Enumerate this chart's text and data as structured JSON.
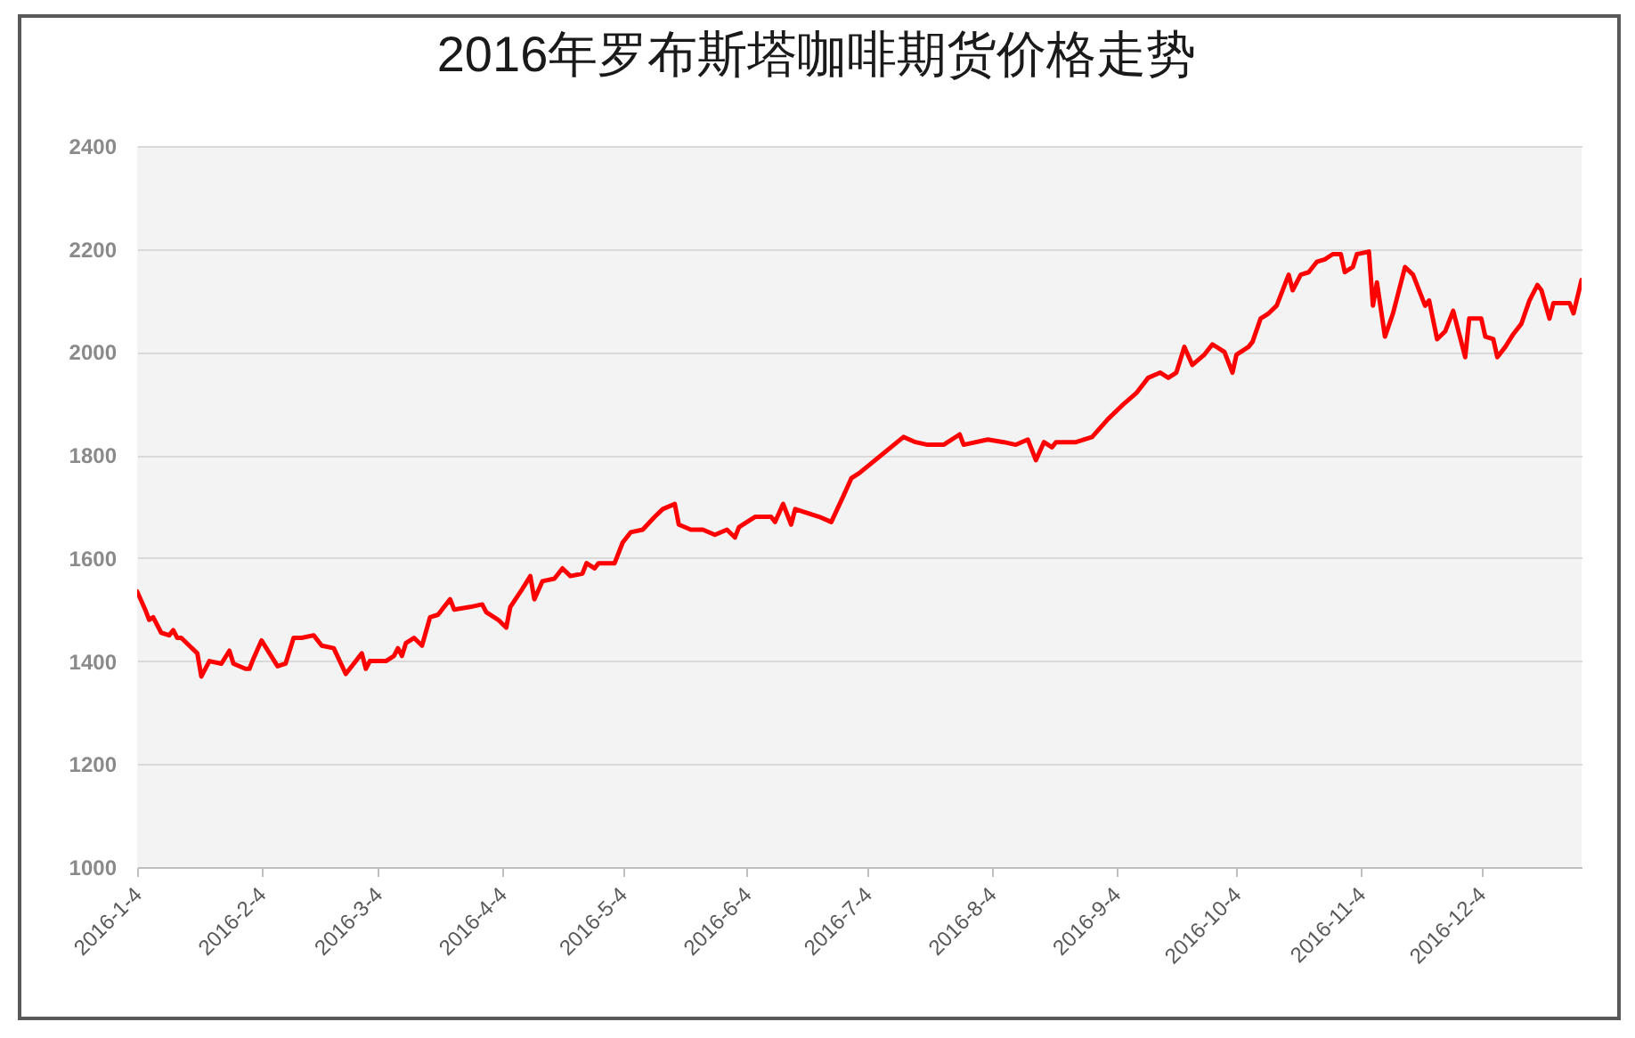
{
  "chart_data": {
    "type": "line",
    "title": "2016年罗布斯塔咖啡期货价格走势",
    "color": "#ff0000",
    "x": [
      "2016-01-04",
      "2016-01-06",
      "2016-01-07",
      "2016-01-08",
      "2016-01-10",
      "2016-01-12",
      "2016-01-13",
      "2016-01-14",
      "2016-01-15",
      "2016-01-17",
      "2016-01-19",
      "2016-01-20",
      "2016-01-22",
      "2016-01-25",
      "2016-01-27",
      "2016-01-28",
      "2016-01-31",
      "2016-02-01",
      "2016-02-02",
      "2016-02-04",
      "2016-02-06",
      "2016-02-08",
      "2016-02-10",
      "2016-02-12",
      "2016-02-14",
      "2016-02-17",
      "2016-02-19",
      "2016-02-22",
      "2016-02-25",
      "2016-02-26",
      "2016-02-29",
      "2016-03-01",
      "2016-03-02",
      "2016-03-06",
      "2016-03-08",
      "2016-03-09",
      "2016-03-10",
      "2016-03-11",
      "2016-03-13",
      "2016-03-15",
      "2016-03-17",
      "2016-03-19",
      "2016-03-22",
      "2016-03-23",
      "2016-03-27",
      "2016-03-30",
      "2016-03-31",
      "2016-04-03",
      "2016-04-05",
      "2016-04-06",
      "2016-04-09",
      "2016-04-11",
      "2016-04-12",
      "2016-04-14",
      "2016-04-17",
      "2016-04-19",
      "2016-04-21",
      "2016-04-24",
      "2016-04-25",
      "2016-04-27",
      "2016-04-28",
      "2016-05-02",
      "2016-05-04",
      "2016-05-06",
      "2016-05-09",
      "2016-05-12",
      "2016-05-14",
      "2016-05-17",
      "2016-05-18",
      "2016-05-21",
      "2016-05-24",
      "2016-05-27",
      "2016-05-30",
      "2016-06-01",
      "2016-06-02",
      "2016-06-06",
      "2016-06-10",
      "2016-06-11",
      "2016-06-13",
      "2016-06-15",
      "2016-06-16",
      "2016-06-22",
      "2016-06-25",
      "2016-06-28",
      "2016-06-30",
      "2016-07-02",
      "2016-07-13",
      "2016-07-16",
      "2016-07-19",
      "2016-07-23",
      "2016-07-27",
      "2016-07-28",
      "2016-08-03",
      "2016-08-07",
      "2016-08-10",
      "2016-08-13",
      "2016-08-15",
      "2016-08-17",
      "2016-08-19",
      "2016-08-20",
      "2016-08-25",
      "2016-08-29",
      "2016-09-02",
      "2016-09-06",
      "2016-09-09",
      "2016-09-12",
      "2016-09-15",
      "2016-09-17",
      "2016-09-19",
      "2016-09-21",
      "2016-09-23",
      "2016-09-26",
      "2016-09-28",
      "2016-10-01",
      "2016-10-03",
      "2016-10-04",
      "2016-10-07",
      "2016-10-08",
      "2016-10-10",
      "2016-10-12",
      "2016-10-14",
      "2016-10-17",
      "2016-10-18",
      "2016-10-20",
      "2016-10-22",
      "2016-10-24",
      "2016-10-26",
      "2016-10-28",
      "2016-10-30",
      "2016-10-31",
      "2016-11-02",
      "2016-11-03",
      "2016-11-06",
      "2016-11-07",
      "2016-11-08",
      "2016-11-10",
      "2016-11-12",
      "2016-11-15",
      "2016-11-17",
      "2016-11-20",
      "2016-11-21",
      "2016-11-23",
      "2016-11-25",
      "2016-11-27",
      "2016-11-30",
      "2016-12-01",
      "2016-12-04",
      "2016-12-05",
      "2016-12-07",
      "2016-12-08",
      "2016-12-10",
      "2016-12-12",
      "2016-12-14",
      "2016-12-16",
      "2016-12-18",
      "2016-12-19",
      "2016-12-21",
      "2016-12-22",
      "2016-12-26",
      "2016-12-27",
      "2016-12-29"
    ],
    "values": [
      1535,
      1500,
      1480,
      1485,
      1455,
      1450,
      1460,
      1445,
      1445,
      1430,
      1415,
      1370,
      1400,
      1395,
      1420,
      1395,
      1385,
      1385,
      1405,
      1440,
      1415,
      1390,
      1395,
      1445,
      1445,
      1450,
      1430,
      1425,
      1375,
      1385,
      1415,
      1385,
      1400,
      1400,
      1410,
      1425,
      1410,
      1435,
      1445,
      1430,
      1485,
      1490,
      1520,
      1500,
      1505,
      1510,
      1495,
      1480,
      1465,
      1505,
      1540,
      1565,
      1520,
      1555,
      1560,
      1580,
      1565,
      1570,
      1590,
      1580,
      1590,
      1590,
      1630,
      1650,
      1655,
      1680,
      1695,
      1705,
      1665,
      1655,
      1655,
      1645,
      1655,
      1640,
      1660,
      1680,
      1680,
      1670,
      1705,
      1665,
      1695,
      1680,
      1670,
      1720,
      1755,
      1765,
      1835,
      1825,
      1820,
      1820,
      1840,
      1820,
      1830,
      1825,
      1820,
      1830,
      1790,
      1825,
      1815,
      1825,
      1825,
      1835,
      1870,
      1900,
      1920,
      1950,
      1960,
      1950,
      1960,
      2010,
      1975,
      1995,
      2015,
      2000,
      1960,
      1995,
      2010,
      2020,
      2065,
      2075,
      2090,
      2150,
      2120,
      2150,
      2155,
      2175,
      2180,
      2190,
      2190,
      2155,
      2165,
      2190,
      2195,
      2090,
      2135,
      2030,
      2075,
      2165,
      2150,
      2090,
      2100,
      2025,
      2040,
      2080,
      1990,
      2065,
      2065,
      2030,
      2025,
      1990,
      2010,
      2035,
      2055,
      2100,
      2130,
      2120,
      2065,
      2095,
      2095,
      2075,
      2140
    ],
    "xlim": [
      "2016-01-04",
      "2016-12-29"
    ],
    "xticks": [
      {
        "value": "2016-01-04",
        "label": "2016-1-4"
      },
      {
        "value": "2016-02-04",
        "label": "2016-2-4"
      },
      {
        "value": "2016-03-04",
        "label": "2016-3-4"
      },
      {
        "value": "2016-04-04",
        "label": "2016-4-4"
      },
      {
        "value": "2016-05-04",
        "label": "2016-5-4"
      },
      {
        "value": "2016-06-04",
        "label": "2016-6-4"
      },
      {
        "value": "2016-07-04",
        "label": "2016-7-4"
      },
      {
        "value": "2016-08-04",
        "label": "2016-8-4"
      },
      {
        "value": "2016-09-04",
        "label": "2016-9-4"
      },
      {
        "value": "2016-10-04",
        "label": "2016-10-4"
      },
      {
        "value": "2016-11-04",
        "label": "2016-11-4"
      },
      {
        "value": "2016-12-04",
        "label": "2016-12-4"
      }
    ],
    "ylim": [
      1000,
      2400
    ],
    "yticks": [
      1000,
      1200,
      1400,
      1600,
      1800,
      2000,
      2200,
      2400
    ],
    "grid": "y"
  }
}
